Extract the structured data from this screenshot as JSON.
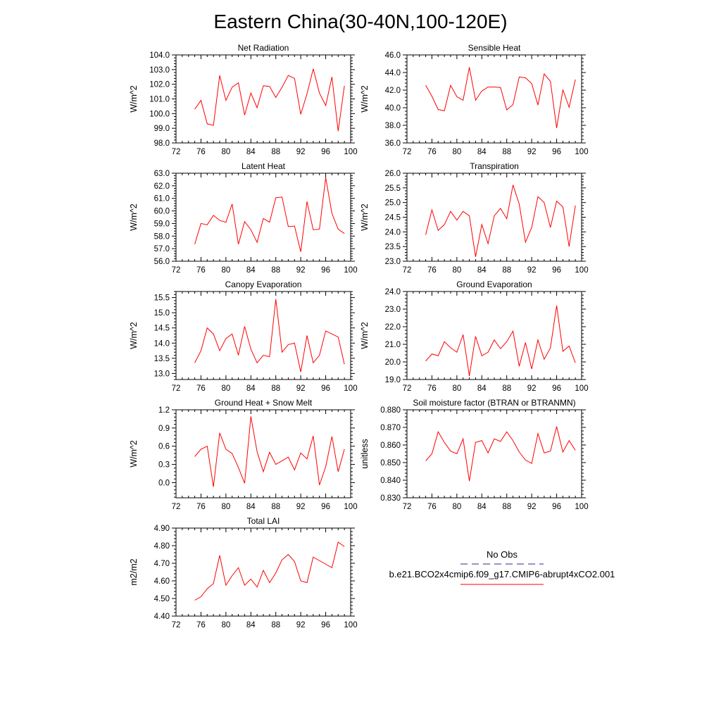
{
  "figure": {
    "title": "Eastern China(30-40N,100-120E)",
    "line_color": "#ff0000",
    "obs_line_color": "#2b2b8a"
  },
  "legend": {
    "obs_label": "No Obs",
    "model_label": "b.e21.BCO2x4cmip6.f09_g17.CMIP6-abrupt4xCO2.001"
  },
  "chart_data": [
    {
      "type": "line",
      "title": "Net Radiation",
      "ylabel": "W/m^2",
      "xlim": [
        72,
        100
      ],
      "ylim": [
        98.0,
        104.0
      ],
      "xticks": [
        72,
        76,
        80,
        84,
        88,
        92,
        96,
        100
      ],
      "yticks": [
        98.0,
        99.0,
        100.0,
        101.0,
        102.0,
        103.0,
        104.0
      ],
      "ydec": 1,
      "x": [
        75,
        76,
        77,
        78,
        79,
        80,
        81,
        82,
        83,
        84,
        85,
        86,
        87,
        88,
        89,
        90,
        91,
        92,
        93,
        94,
        95,
        96,
        97,
        98,
        99
      ],
      "values": [
        100.3,
        100.9,
        99.3,
        99.2,
        102.6,
        100.9,
        101.8,
        102.1,
        99.9,
        101.4,
        100.4,
        101.9,
        101.85,
        101.1,
        101.8,
        102.6,
        102.4,
        99.95,
        101.35,
        103.05,
        101.4,
        100.55,
        102.5,
        98.8,
        101.9
      ]
    },
    {
      "type": "line",
      "title": "Sensible Heat",
      "ylabel": "W/m^2",
      "xlim": [
        72,
        100
      ],
      "ylim": [
        36.0,
        46.0
      ],
      "xticks": [
        72,
        76,
        80,
        84,
        88,
        92,
        96,
        100
      ],
      "yticks": [
        36.0,
        38.0,
        40.0,
        42.0,
        44.0,
        46.0
      ],
      "ydec": 1,
      "x": [
        75,
        76,
        77,
        78,
        79,
        80,
        81,
        82,
        83,
        84,
        85,
        86,
        87,
        88,
        89,
        90,
        91,
        92,
        93,
        94,
        95,
        96,
        97,
        98,
        99
      ],
      "values": [
        42.55,
        41.3,
        39.8,
        39.65,
        42.55,
        41.25,
        40.85,
        44.6,
        40.85,
        41.9,
        42.35,
        42.35,
        42.3,
        39.75,
        40.35,
        43.5,
        43.4,
        42.75,
        40.3,
        43.85,
        43.0,
        37.7,
        42.05,
        40.05,
        43.2
      ]
    },
    {
      "type": "line",
      "title": "Latent Heat",
      "ylabel": "W/m^2",
      "xlim": [
        72,
        100
      ],
      "ylim": [
        56.0,
        63.0
      ],
      "xticks": [
        72,
        76,
        80,
        84,
        88,
        92,
        96,
        100
      ],
      "yticks": [
        56.0,
        57.0,
        58.0,
        59.0,
        60.0,
        61.0,
        62.0,
        63.0
      ],
      "ydec": 1,
      "x": [
        75,
        76,
        77,
        78,
        79,
        80,
        81,
        82,
        83,
        84,
        85,
        86,
        87,
        88,
        89,
        90,
        91,
        92,
        93,
        94,
        95,
        96,
        97,
        98,
        99
      ],
      "values": [
        57.35,
        59.0,
        58.9,
        59.65,
        59.25,
        59.1,
        60.55,
        57.35,
        59.15,
        58.5,
        57.5,
        59.4,
        59.1,
        61.05,
        61.1,
        58.75,
        58.8,
        56.75,
        60.75,
        58.5,
        58.55,
        62.65,
        59.8,
        58.55,
        58.2
      ]
    },
    {
      "type": "line",
      "title": "Transpiration",
      "ylabel": "W/m^2",
      "xlim": [
        72,
        100
      ],
      "ylim": [
        23.0,
        26.0
      ],
      "xticks": [
        72,
        76,
        80,
        84,
        88,
        92,
        96,
        100
      ],
      "yticks": [
        23.0,
        23.5,
        24.0,
        24.5,
        25.0,
        25.5,
        26.0
      ],
      "ydec": 1,
      "x": [
        75,
        76,
        77,
        78,
        79,
        80,
        81,
        82,
        83,
        84,
        85,
        86,
        87,
        88,
        89,
        90,
        91,
        92,
        93,
        94,
        95,
        96,
        97,
        98,
        99
      ],
      "values": [
        23.9,
        24.75,
        24.05,
        24.25,
        24.7,
        24.4,
        24.7,
        24.55,
        23.15,
        24.25,
        23.6,
        24.55,
        24.8,
        24.45,
        25.6,
        24.95,
        23.65,
        24.15,
        25.2,
        25.0,
        24.15,
        25.05,
        24.85,
        23.5,
        24.9
      ]
    },
    {
      "type": "line",
      "title": "Canopy Evaporation",
      "ylabel": "W/m^2",
      "xlim": [
        72,
        100
      ],
      "ylim": [
        12.8,
        15.7
      ],
      "xticks": [
        72,
        76,
        80,
        84,
        88,
        92,
        96,
        100
      ],
      "yticks": [
        13.0,
        13.5,
        14.0,
        14.5,
        15.0,
        15.5
      ],
      "ydec": 1,
      "x": [
        75,
        76,
        77,
        78,
        79,
        80,
        81,
        82,
        83,
        84,
        85,
        86,
        87,
        88,
        89,
        90,
        91,
        92,
        93,
        94,
        95,
        96,
        97,
        98,
        99
      ],
      "values": [
        13.35,
        13.75,
        14.5,
        14.3,
        13.75,
        14.15,
        14.3,
        13.6,
        14.55,
        13.8,
        13.35,
        13.6,
        13.55,
        15.45,
        13.7,
        13.95,
        14.0,
        13.05,
        14.25,
        13.35,
        13.6,
        14.4,
        14.3,
        14.2,
        13.3
      ]
    },
    {
      "type": "line",
      "title": "Ground Evaporation",
      "ylabel": "W/m^2",
      "xlim": [
        72,
        100
      ],
      "ylim": [
        19.0,
        24.0
      ],
      "xticks": [
        72,
        76,
        80,
        84,
        88,
        92,
        96,
        100
      ],
      "yticks": [
        19.0,
        20.0,
        21.0,
        22.0,
        23.0,
        24.0
      ],
      "ydec": 1,
      "x": [
        75,
        76,
        77,
        78,
        79,
        80,
        81,
        82,
        83,
        84,
        85,
        86,
        87,
        88,
        89,
        90,
        91,
        92,
        93,
        94,
        95,
        96,
        97,
        98,
        99
      ],
      "values": [
        20.05,
        20.45,
        20.35,
        21.15,
        20.8,
        20.55,
        21.55,
        19.2,
        21.45,
        20.35,
        20.55,
        21.25,
        20.75,
        21.15,
        21.75,
        19.75,
        21.1,
        19.6,
        21.25,
        20.15,
        20.8,
        23.2,
        20.6,
        20.9,
        19.95
      ]
    },
    {
      "type": "line",
      "title": "Ground Heat + Snow Melt",
      "ylabel": "W/m^2",
      "xlim": [
        72,
        100
      ],
      "ylim": [
        -0.25,
        1.2
      ],
      "xticks": [
        72,
        76,
        80,
        84,
        88,
        92,
        96,
        100
      ],
      "yticks": [
        0.0,
        0.3,
        0.6,
        0.9,
        1.2
      ],
      "ydec": 1,
      "x": [
        75,
        76,
        77,
        78,
        79,
        80,
        81,
        82,
        83,
        84,
        85,
        86,
        87,
        88,
        89,
        90,
        91,
        92,
        93,
        94,
        95,
        96,
        97,
        98,
        99
      ],
      "values": [
        0.43,
        0.55,
        0.6,
        -0.07,
        0.82,
        0.55,
        0.48,
        0.25,
        -0.01,
        1.09,
        0.51,
        0.18,
        0.5,
        0.3,
        0.36,
        0.42,
        0.21,
        0.49,
        0.39,
        0.77,
        -0.04,
        0.26,
        0.76,
        0.18,
        0.55
      ]
    },
    {
      "type": "line",
      "title": "Soil moisture factor (BTRAN or BTRANMN)",
      "ylabel": "unitless",
      "xlim": [
        72,
        100
      ],
      "ylim": [
        0.83,
        0.88
      ],
      "xticks": [
        72,
        76,
        80,
        84,
        88,
        92,
        96,
        100
      ],
      "yticks": [
        0.83,
        0.84,
        0.85,
        0.86,
        0.87,
        0.88
      ],
      "ydec": 3,
      "x": [
        75,
        76,
        77,
        78,
        79,
        80,
        81,
        82,
        83,
        84,
        85,
        86,
        87,
        88,
        89,
        90,
        91,
        92,
        93,
        94,
        95,
        96,
        97,
        98,
        99
      ],
      "values": [
        0.851,
        0.855,
        0.8675,
        0.8615,
        0.8565,
        0.855,
        0.8635,
        0.8395,
        0.8615,
        0.8625,
        0.8555,
        0.8635,
        0.862,
        0.8675,
        0.8625,
        0.856,
        0.8515,
        0.8495,
        0.8665,
        0.8555,
        0.8565,
        0.8705,
        0.856,
        0.8625,
        0.857
      ]
    },
    {
      "type": "line",
      "title": "Total LAI",
      "ylabel": "m2/m2",
      "xlim": [
        72,
        100
      ],
      "ylim": [
        4.4,
        4.9
      ],
      "xticks": [
        72,
        76,
        80,
        84,
        88,
        92,
        96,
        100
      ],
      "yticks": [
        4.4,
        4.5,
        4.6,
        4.7,
        4.8,
        4.9
      ],
      "ydec": 2,
      "x": [
        75,
        76,
        77,
        78,
        79,
        80,
        81,
        82,
        83,
        84,
        85,
        86,
        87,
        88,
        89,
        90,
        91,
        92,
        93,
        94,
        95,
        96,
        97,
        98,
        99
      ],
      "values": [
        4.49,
        4.51,
        4.555,
        4.585,
        4.745,
        4.575,
        4.63,
        4.675,
        4.575,
        4.61,
        4.565,
        4.66,
        4.59,
        4.645,
        4.72,
        4.75,
        4.71,
        4.6,
        4.59,
        4.735,
        4.715,
        4.695,
        4.675,
        4.82,
        4.795
      ]
    }
  ]
}
